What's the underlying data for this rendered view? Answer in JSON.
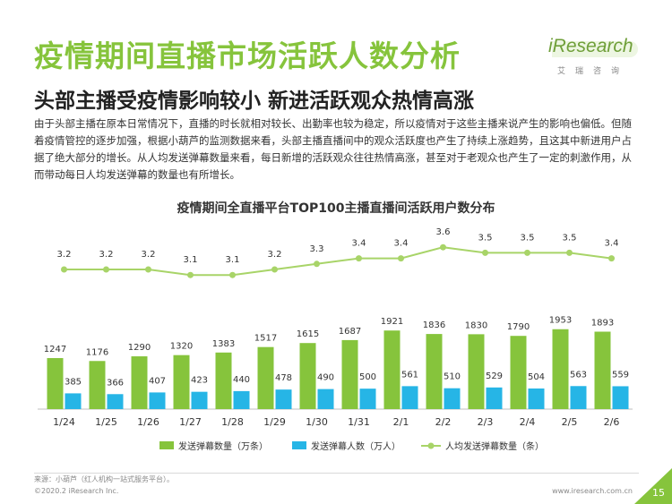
{
  "page": {
    "title": "疫情期间直播市场活跃人数分析",
    "subtitle": "头部主播受疫情影响较小 新进活跃观众热情高涨",
    "body": "由于头部主播在原本日常情况下，直播的时长就相对较长、出勤率也较为稳定，所以疫情对于这些主播来说产生的影响也偏低。但随着疫情管控的逐步加强，根据小葫芦的监测数据来看，头部主播直播间中的观众活跃度也产生了持续上涨趋势，且这其中新进用户占据了绝大部分的增长。从人均发送弹幕数量来看，每日新增的活跃观众往往热情高涨，甚至对于老观众也产生了一定的刺激作用，从而带动每日人均发送弹幕的数量也有所增长。",
    "source": "来源：小葫芦（红人机构一站式服务平台）。",
    "copyright": "©2020.2 iResearch Inc.",
    "url": "www.iresearch.com.cn",
    "page_number": "15",
    "logo_text": "iResearch",
    "logo_sub": "艾瑞咨询",
    "colors": {
      "brand_green": "#86c43c",
      "bar_blue": "#26b5e6",
      "line_green": "#a8d468"
    }
  },
  "chart_data": {
    "type": "bar",
    "title": "疫情期间全直播平台TOP100主播直播间活跃用户数分布",
    "categories": [
      "1/24",
      "1/25",
      "1/26",
      "1/27",
      "1/28",
      "1/29",
      "1/30",
      "1/31",
      "2/1",
      "2/2",
      "2/3",
      "2/4",
      "2/5",
      "2/6"
    ],
    "series": [
      {
        "name": "发送弹幕数量（万条）",
        "type": "bar",
        "color": "#86c43c",
        "values": [
          1247,
          1176,
          1290,
          1320,
          1383,
          1517,
          1615,
          1687,
          1921,
          1836,
          1830,
          1790,
          1953,
          1893
        ]
      },
      {
        "name": "发送弹幕人数（万人）",
        "type": "bar",
        "color": "#26b5e6",
        "values": [
          385,
          366,
          407,
          423,
          440,
          478,
          490,
          500,
          561,
          510,
          529,
          504,
          563,
          559
        ]
      },
      {
        "name": "人均发送弹幕数量（条）",
        "type": "line",
        "color": "#a8d468",
        "values": [
          3.2,
          3.2,
          3.2,
          3.1,
          3.1,
          3.2,
          3.3,
          3.4,
          3.4,
          3.6,
          3.5,
          3.5,
          3.5,
          3.4
        ]
      }
    ],
    "legend_position": "bottom",
    "grid": false
  }
}
